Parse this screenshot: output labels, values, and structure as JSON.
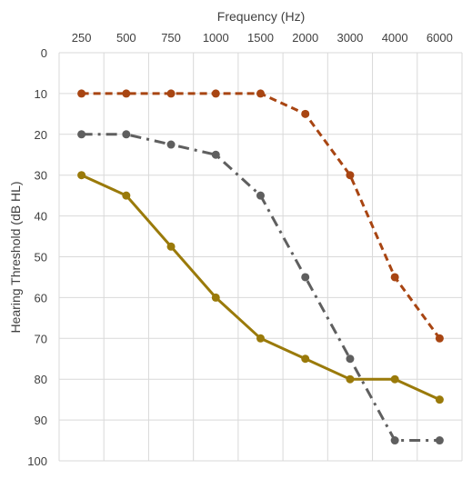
{
  "chart_data": {
    "type": "line",
    "xlabel": "Frequency (Hz)",
    "ylabel": "Hearing Threshold (dB HL)",
    "categories": [
      "250",
      "500",
      "750",
      "1000",
      "1500",
      "2000",
      "3000",
      "4000",
      "6000"
    ],
    "ylim": [
      0,
      100
    ],
    "y_ticks": [
      "0",
      "10",
      "20",
      "30",
      "40",
      "50",
      "60",
      "70",
      "80",
      "90",
      "100"
    ],
    "y_inverted": true,
    "x_axis_position": "top",
    "grid": true,
    "legend": "none",
    "series": [
      {
        "color": "#a84512",
        "line_style": "dashed",
        "values": [
          10,
          10,
          10,
          10,
          10,
          15,
          30,
          55,
          70
        ]
      },
      {
        "color": "#5f5f5f",
        "line_style": "dash-dot",
        "values": [
          20,
          20,
          22.5,
          25,
          35,
          55,
          75,
          95,
          95
        ]
      },
      {
        "color": "#9a7a0a",
        "line_style": "solid",
        "values": [
          30,
          35,
          47.5,
          60,
          70,
          75,
          80,
          80,
          85
        ]
      }
    ]
  }
}
